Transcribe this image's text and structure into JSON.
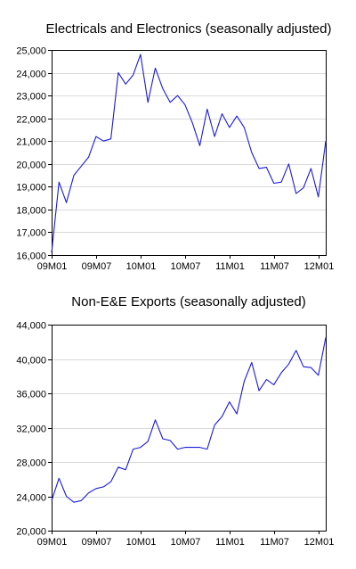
{
  "chart_data": [
    {
      "type": "line",
      "title": "Electricals and Electronics (seasonally adjusted)",
      "xlabel": "",
      "ylabel": "",
      "x_tick_labels": [
        "09M01",
        "09M07",
        "10M01",
        "10M07",
        "11M01",
        "11M07",
        "12M01"
      ],
      "y_tick_labels": [
        "16,000",
        "17,000",
        "18,000",
        "19,000",
        "20,000",
        "21,000",
        "22,000",
        "23,000",
        "24,000",
        "25,000"
      ],
      "y_ticks": [
        16000,
        17000,
        18000,
        19000,
        20000,
        21000,
        22000,
        23000,
        24000,
        25000
      ],
      "ylim": [
        16000,
        25000
      ],
      "grid": true,
      "line_color": "#1a1adb",
      "x": [
        "09M01",
        "09M02",
        "09M03",
        "09M04",
        "09M05",
        "09M06",
        "09M07",
        "09M08",
        "09M09",
        "09M10",
        "09M11",
        "09M12",
        "10M01",
        "10M02",
        "10M03",
        "10M04",
        "10M05",
        "10M06",
        "10M07",
        "10M08",
        "10M09",
        "10M10",
        "10M11",
        "10M12",
        "11M01",
        "11M02",
        "11M03",
        "11M04",
        "11M05",
        "11M06",
        "11M07",
        "11M08",
        "11M09",
        "11M10",
        "11M11",
        "11M12",
        "12M01",
        "12M02"
      ],
      "values": [
        16100,
        19200,
        18300,
        19500,
        19900,
        20300,
        21200,
        21000,
        21100,
        24000,
        23500,
        23900,
        24800,
        22700,
        24200,
        23300,
        22700,
        23000,
        22600,
        21800,
        20800,
        22400,
        21200,
        22200,
        21600,
        22100,
        21600,
        20500,
        19800,
        19850,
        19150,
        19200,
        20000,
        18700,
        18950,
        19800,
        18550,
        21000
      ]
    },
    {
      "type": "line",
      "title": "Non-E&E Exports (seasonally adjusted)",
      "xlabel": "",
      "ylabel": "",
      "x_tick_labels": [
        "09M01",
        "09M07",
        "10M01",
        "10M07",
        "11M01",
        "11M07",
        "12M01"
      ],
      "y_tick_labels": [
        "20,000",
        "24,000",
        "28,000",
        "32,000",
        "36,000",
        "40,000",
        "44,000"
      ],
      "y_ticks": [
        20000,
        24000,
        28000,
        32000,
        36000,
        40000,
        44000
      ],
      "ylim": [
        20000,
        44000
      ],
      "grid": true,
      "line_color": "#1a1adb",
      "x": [
        "09M01",
        "09M02",
        "09M03",
        "09M04",
        "09M05",
        "09M06",
        "09M07",
        "09M08",
        "09M09",
        "09M10",
        "09M11",
        "09M12",
        "10M01",
        "10M02",
        "10M03",
        "10M04",
        "10M05",
        "10M06",
        "10M07",
        "10M08",
        "10M09",
        "10M10",
        "10M11",
        "10M12",
        "11M01",
        "11M02",
        "11M03",
        "11M04",
        "11M05",
        "11M06",
        "11M07",
        "11M08",
        "11M09",
        "11M10",
        "11M11",
        "11M12",
        "12M01",
        "12M02"
      ],
      "values": [
        23500,
        26100,
        24000,
        23300,
        23500,
        24400,
        24900,
        25100,
        25700,
        27400,
        27100,
        29500,
        29700,
        30400,
        32900,
        30700,
        30500,
        29500,
        29700,
        29700,
        29700,
        29500,
        32300,
        33300,
        35000,
        33600,
        37400,
        39600,
        36300,
        37600,
        37000,
        38400,
        39400,
        41000,
        39100,
        39000,
        38100,
        42500
      ]
    }
  ]
}
